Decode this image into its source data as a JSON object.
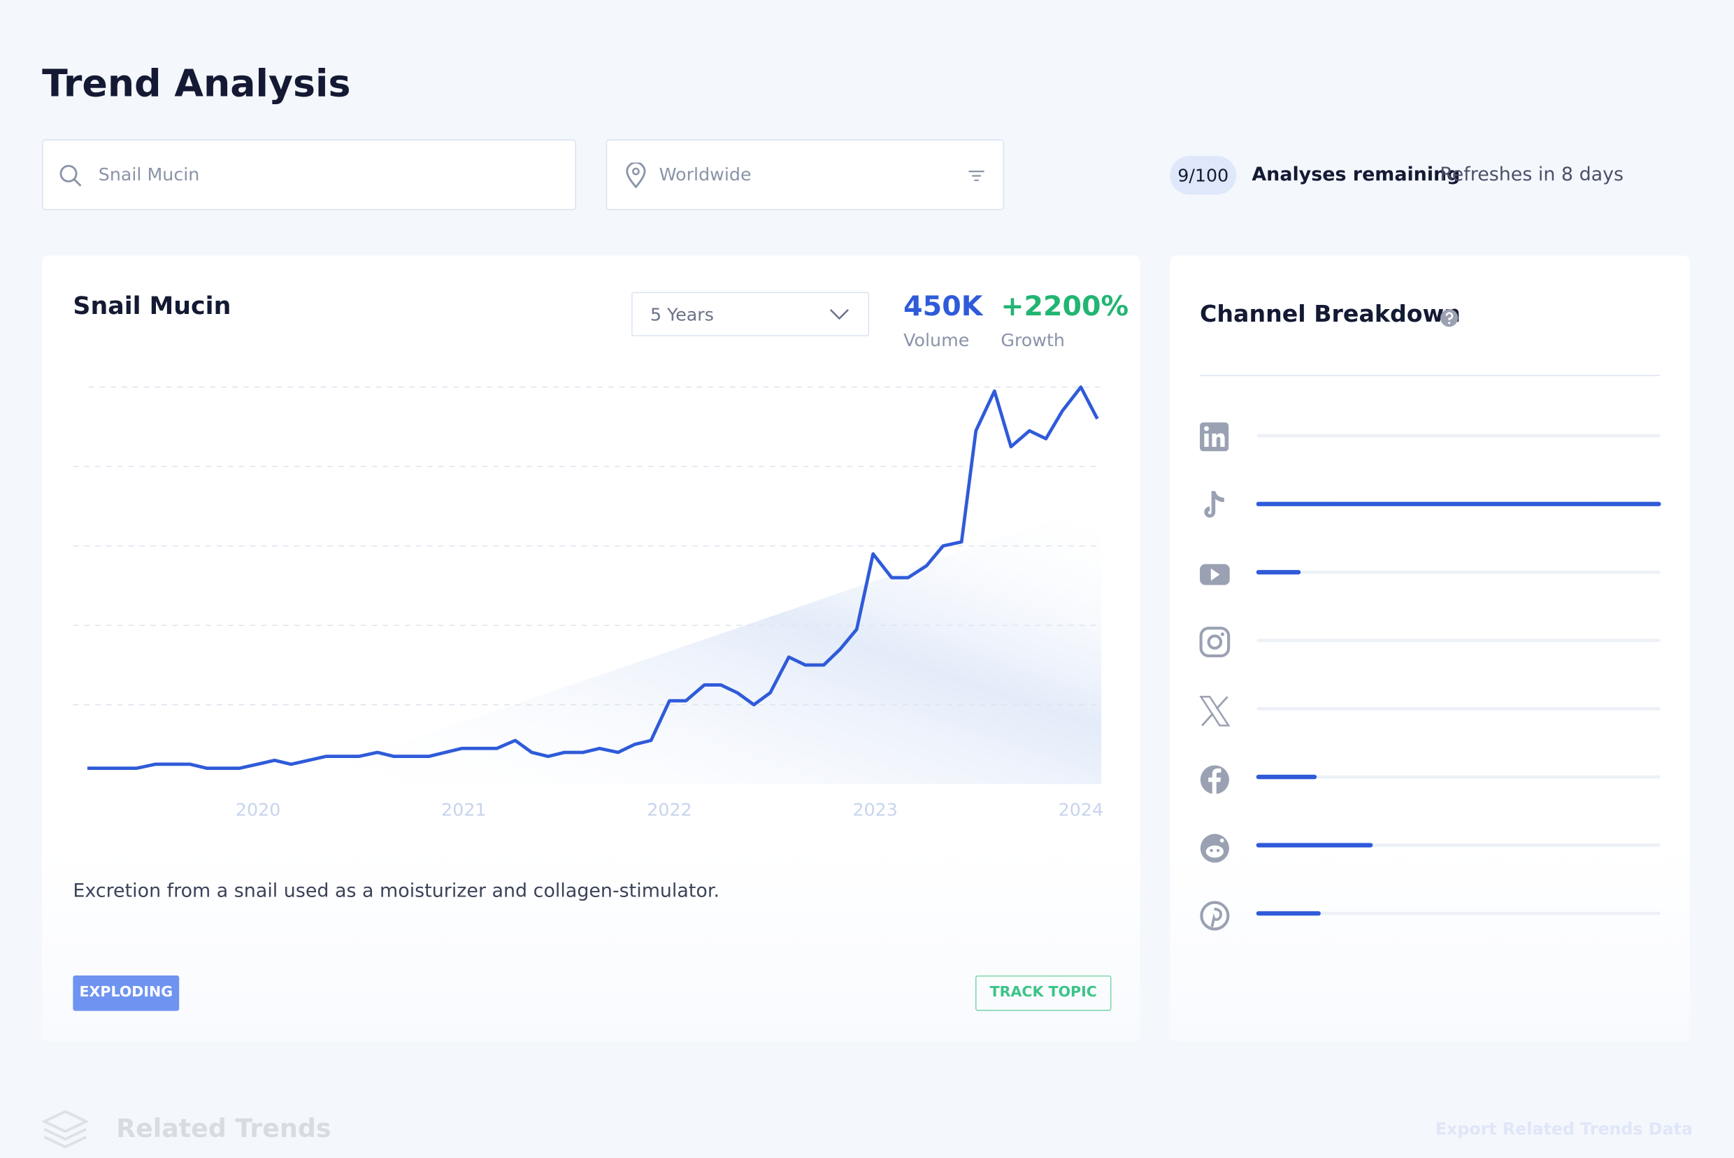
{
  "header": {
    "title": "Trend Analysis"
  },
  "search": {
    "query": "Snail Mucin",
    "location": "Worldwide"
  },
  "quota": {
    "count": "9/100",
    "label": "Analyses remaining",
    "refresh": "Refreshes in 8 days"
  },
  "card": {
    "title": "Snail Mucin",
    "range": "5 Years",
    "volume": "450K",
    "volume_label": "Volume",
    "growth": "+2200%",
    "growth_label": "Growth",
    "description": "Excretion from a snail used as a moisturizer and collagen-stimulator.",
    "status": "EXPLODING",
    "action": "TRACK TOPIC"
  },
  "chart_data": {
    "type": "line",
    "color": "#2f5bd9",
    "grid": true,
    "x": [
      2019.17,
      2019.41,
      2019.5,
      2019.67,
      2019.75,
      2019.91,
      2020.08,
      2020.16,
      2020.33,
      2020.49,
      2020.58,
      2020.66,
      2020.83,
      2020.99,
      2021.16,
      2021.25,
      2021.33,
      2021.41,
      2021.49,
      2021.58,
      2021.66,
      2021.75,
      2021.83,
      2021.91,
      2022.0,
      2022.08,
      2022.17,
      2022.25,
      2022.33,
      2022.41,
      2022.49,
      2022.58,
      2022.66,
      2022.75,
      2022.83,
      2022.91,
      2022.99,
      2023.08,
      2023.16,
      2023.25,
      2023.33,
      2023.42,
      2023.49,
      2023.58,
      2023.66,
      2023.75,
      2023.83,
      2023.91,
      2024.0,
      2024.08
    ],
    "values": [
      4,
      4,
      5,
      5,
      4,
      4,
      6,
      5,
      7,
      7,
      8,
      7,
      7,
      9,
      9,
      11,
      8,
      7,
      8,
      8,
      9,
      8,
      10,
      11,
      21,
      21,
      25,
      25,
      23,
      20,
      23,
      32,
      30,
      30,
      34,
      39,
      58,
      52,
      52,
      55,
      60,
      61,
      89,
      99,
      85,
      89,
      87,
      94,
      100,
      92
    ],
    "xlim": [
      2019.1,
      2024.1
    ],
    "ylim": [
      0,
      100
    ],
    "xticks": [
      2020,
      2021,
      2022,
      2023,
      2024
    ]
  },
  "channels": {
    "title": "Channel Breakdown",
    "color": "#2f5bd9",
    "values": [
      0,
      100,
      10,
      0,
      0,
      14,
      28,
      15
    ]
  },
  "related": {
    "title": "Related Trends",
    "export": "Export Related Trends Data"
  }
}
